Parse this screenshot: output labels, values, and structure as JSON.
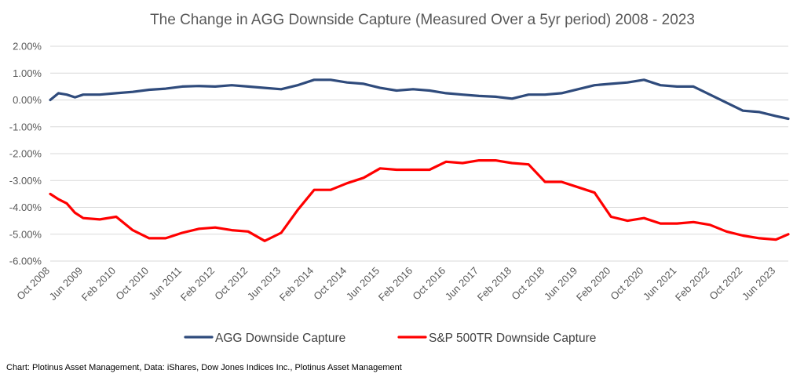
{
  "chart_data": {
    "type": "line",
    "title": "The Change in AGG Downside Capture (Measured Over a 5yr period) 2008 - 2023",
    "caption": "Chart: Plotinus Asset Management, Data: iShares, Dow Jones Indices Inc., Plotinus Asset Management",
    "xlabel": "",
    "ylabel": "",
    "ylim": [
      -0.06,
      0.02
    ],
    "yticks": [
      0.02,
      0.01,
      0.0,
      -0.01,
      -0.02,
      -0.03,
      -0.04,
      -0.05,
      -0.06
    ],
    "ytick_labels": [
      "2.00%",
      "1.00%",
      "0.00%",
      "-1.00%",
      "-2.00%",
      "-3.00%",
      "-4.00%",
      "-5.00%",
      "-6.00%"
    ],
    "grid": true,
    "legend_position": "bottom",
    "x_start": "Oct 2008",
    "x_end": "Sep 2023",
    "x_tick_labels": [
      "Oct 2008",
      "Jun 2009",
      "Feb 2010",
      "Oct 2010",
      "Jun 2011",
      "Feb 2012",
      "Oct 2012",
      "Jun 2013",
      "Feb 2014",
      "Oct 2014",
      "Jun 2015",
      "Feb 2016",
      "Oct 2016",
      "Jun 2017",
      "Feb 2018",
      "Oct 2018",
      "Jun 2019",
      "Feb 2020",
      "Oct 2020",
      "Jun 2021",
      "Feb 2022",
      "Oct 2022",
      "Jun 2023"
    ],
    "series": [
      {
        "name": "AGG Downside Capture",
        "color": "#2f4b7c",
        "points": [
          [
            "Oct 2008",
            0.0
          ],
          [
            "Dec 2008",
            0.0025
          ],
          [
            "Feb 2009",
            0.002
          ],
          [
            "Apr 2009",
            0.001
          ],
          [
            "Jun 2009",
            0.002
          ],
          [
            "Oct 2009",
            0.002
          ],
          [
            "Feb 2010",
            0.0025
          ],
          [
            "Jun 2010",
            0.003
          ],
          [
            "Oct 2010",
            0.0038
          ],
          [
            "Feb 2011",
            0.0042
          ],
          [
            "Jun 2011",
            0.005
          ],
          [
            "Oct 2011",
            0.0052
          ],
          [
            "Feb 2012",
            0.005
          ],
          [
            "Jun 2012",
            0.0055
          ],
          [
            "Oct 2012",
            0.005
          ],
          [
            "Feb 2013",
            0.0045
          ],
          [
            "Jun 2013",
            0.004
          ],
          [
            "Oct 2013",
            0.0055
          ],
          [
            "Feb 2014",
            0.0075
          ],
          [
            "Jun 2014",
            0.0075
          ],
          [
            "Oct 2014",
            0.0065
          ],
          [
            "Feb 2015",
            0.006
          ],
          [
            "Jun 2015",
            0.0045
          ],
          [
            "Oct 2015",
            0.0035
          ],
          [
            "Feb 2016",
            0.004
          ],
          [
            "Jun 2016",
            0.0035
          ],
          [
            "Oct 2016",
            0.0025
          ],
          [
            "Feb 2017",
            0.002
          ],
          [
            "Jun 2017",
            0.0015
          ],
          [
            "Oct 2017",
            0.0012
          ],
          [
            "Feb 2018",
            0.0005
          ],
          [
            "Jun 2018",
            0.002
          ],
          [
            "Oct 2018",
            0.002
          ],
          [
            "Feb 2019",
            0.0025
          ],
          [
            "Jun 2019",
            0.004
          ],
          [
            "Oct 2019",
            0.0055
          ],
          [
            "Feb 2020",
            0.006
          ],
          [
            "Jun 2020",
            0.0065
          ],
          [
            "Oct 2020",
            0.0075
          ],
          [
            "Feb 2021",
            0.0055
          ],
          [
            "Jun 2021",
            0.005
          ],
          [
            "Oct 2021",
            0.005
          ],
          [
            "Feb 2022",
            0.002
          ],
          [
            "Jun 2022",
            -0.001
          ],
          [
            "Oct 2022",
            -0.004
          ],
          [
            "Feb 2023",
            -0.0045
          ],
          [
            "Jun 2023",
            -0.006
          ],
          [
            "Sep 2023",
            -0.007
          ]
        ]
      },
      {
        "name": "S&P 500TR Downside Capture",
        "color": "#ff0000",
        "points": [
          [
            "Oct 2008",
            -0.035
          ],
          [
            "Dec 2008",
            -0.037
          ],
          [
            "Feb 2009",
            -0.0385
          ],
          [
            "Apr 2009",
            -0.042
          ],
          [
            "Jun 2009",
            -0.044
          ],
          [
            "Oct 2009",
            -0.0445
          ],
          [
            "Feb 2010",
            -0.0435
          ],
          [
            "Jun 2010",
            -0.0485
          ],
          [
            "Oct 2010",
            -0.0515
          ],
          [
            "Feb 2011",
            -0.0515
          ],
          [
            "Jun 2011",
            -0.0495
          ],
          [
            "Oct 2011",
            -0.048
          ],
          [
            "Feb 2012",
            -0.0475
          ],
          [
            "Jun 2012",
            -0.0485
          ],
          [
            "Oct 2012",
            -0.049
          ],
          [
            "Feb 2013",
            -0.0525
          ],
          [
            "Jun 2013",
            -0.0495
          ],
          [
            "Oct 2013",
            -0.041
          ],
          [
            "Feb 2014",
            -0.0335
          ],
          [
            "Jun 2014",
            -0.0335
          ],
          [
            "Oct 2014",
            -0.031
          ],
          [
            "Feb 2015",
            -0.029
          ],
          [
            "Jun 2015",
            -0.0255
          ],
          [
            "Oct 2015",
            -0.026
          ],
          [
            "Feb 2016",
            -0.026
          ],
          [
            "Jun 2016",
            -0.026
          ],
          [
            "Oct 2016",
            -0.023
          ],
          [
            "Feb 2017",
            -0.0235
          ],
          [
            "Jun 2017",
            -0.0225
          ],
          [
            "Oct 2017",
            -0.0225
          ],
          [
            "Feb 2018",
            -0.0235
          ],
          [
            "Jun 2018",
            -0.024
          ],
          [
            "Oct 2018",
            -0.0305
          ],
          [
            "Feb 2019",
            -0.0305
          ],
          [
            "Jun 2019",
            -0.0325
          ],
          [
            "Oct 2019",
            -0.0345
          ],
          [
            "Feb 2020",
            -0.0435
          ],
          [
            "Jun 2020",
            -0.045
          ],
          [
            "Oct 2020",
            -0.044
          ],
          [
            "Feb 2021",
            -0.046
          ],
          [
            "Jun 2021",
            -0.046
          ],
          [
            "Oct 2021",
            -0.0455
          ],
          [
            "Feb 2022",
            -0.0465
          ],
          [
            "Jun 2022",
            -0.049
          ],
          [
            "Oct 2022",
            -0.0505
          ],
          [
            "Feb 2023",
            -0.0515
          ],
          [
            "Jun 2023",
            -0.052
          ],
          [
            "Sep 2023",
            -0.05
          ]
        ]
      }
    ]
  }
}
